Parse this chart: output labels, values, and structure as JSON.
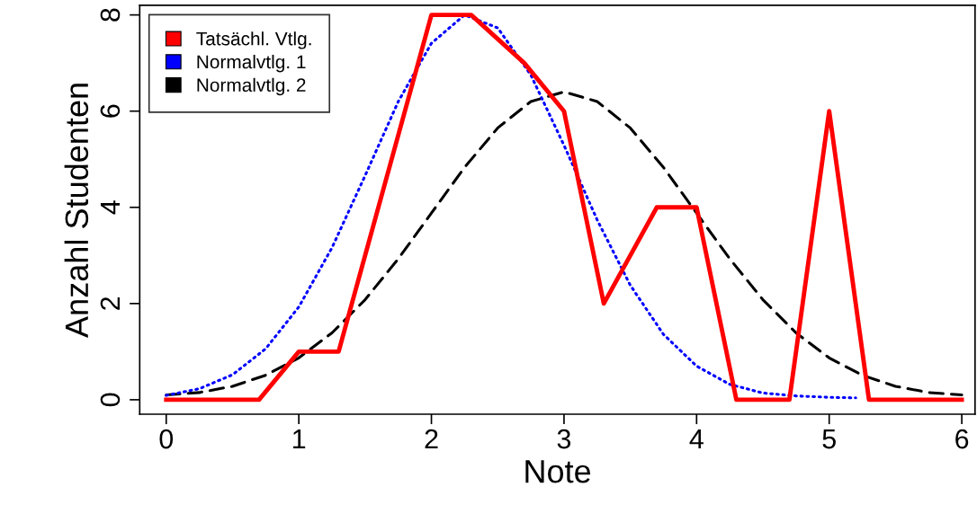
{
  "chart_data": {
    "type": "line",
    "xlabel": "Note",
    "ylabel": "Anzahl Studenten",
    "xlim": [
      -0.2,
      6.1
    ],
    "ylim": [
      -0.3,
      8.2
    ],
    "xticks": [
      0,
      1,
      2,
      3,
      4,
      5,
      6
    ],
    "yticks": [
      0,
      2,
      4,
      6,
      8
    ],
    "grid": false,
    "legend": "top left",
    "marker": "none",
    "series": [
      {
        "name": "Tatsächl. Vtlg.",
        "color": "#ff0000",
        "line_style": "solid",
        "x": [
          0,
          0.7,
          1,
          1.3,
          2,
          2.3,
          2.7,
          3,
          3.3,
          3.7,
          4,
          4.3,
          4.7,
          5,
          5.3,
          6
        ],
        "values": [
          0,
          0,
          1,
          1,
          8,
          8,
          7,
          6,
          2,
          4,
          4,
          0,
          0,
          6,
          0,
          0
        ]
      },
      {
        "name": "Normalvtlg. 1",
        "color": "#0000ff",
        "line_style": "dotted",
        "x": [
          0,
          0.25,
          0.5,
          0.75,
          1,
          1.25,
          1.5,
          1.75,
          2,
          2.25,
          2.5,
          2.75,
          3,
          3.25,
          3.5,
          3.75,
          4,
          4.25,
          4.5,
          4.75,
          5,
          5.2
        ],
        "values": [
          0.09,
          0.23,
          0.52,
          1.06,
          1.93,
          3.16,
          4.66,
          6.2,
          7.41,
          8,
          7.73,
          6.75,
          5.29,
          3.74,
          2.38,
          1.36,
          0.7,
          0.32,
          0.14,
          0.08,
          0.05,
          0.04
        ]
      },
      {
        "name": "Normalvtlg. 2",
        "color": "#000000",
        "line_style": "dashed",
        "x": [
          0,
          0.25,
          0.5,
          0.75,
          1,
          1.25,
          1.5,
          1.75,
          2,
          2.25,
          2.5,
          2.75,
          3,
          3.25,
          3.5,
          3.75,
          4,
          4.25,
          4.5,
          4.75,
          5,
          5.25,
          5.5,
          5.75,
          6
        ],
        "values": [
          0.1,
          0.15,
          0.28,
          0.51,
          0.87,
          1.39,
          2.08,
          2.93,
          3.88,
          4.83,
          5.65,
          6.2,
          6.4,
          6.2,
          5.65,
          4.83,
          3.88,
          2.93,
          2.08,
          1.39,
          0.87,
          0.51,
          0.28,
          0.15,
          0.1
        ]
      }
    ]
  }
}
